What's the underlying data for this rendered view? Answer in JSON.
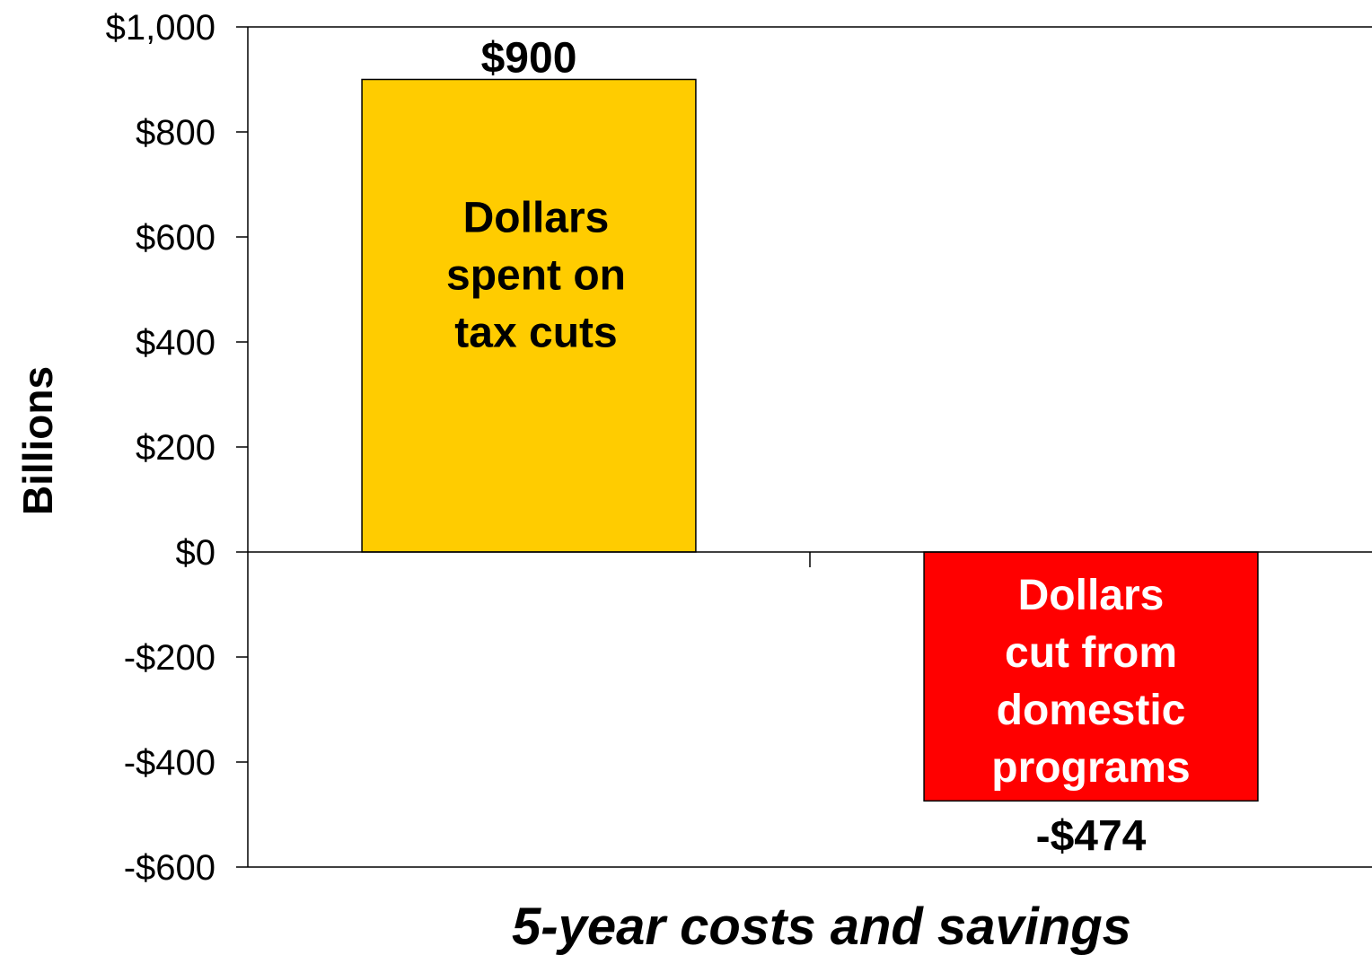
{
  "chart_data": {
    "type": "bar",
    "categories": [
      "Dollars spent on tax cuts",
      "Dollars cut from domestic programs"
    ],
    "values": [
      900,
      -474
    ],
    "value_labels": [
      "$900",
      "-$474"
    ],
    "bar_text": [
      [
        "Dollars",
        "spent on",
        "tax cuts"
      ],
      [
        "Dollars",
        "cut from",
        "domestic",
        "programs"
      ]
    ],
    "colors": [
      "#FFCC00",
      "#FF0000"
    ],
    "bar_text_colors": [
      "#000000",
      "#FFFFFF"
    ],
    "xlabel": "5-year costs and savings",
    "ylabel": "Billions",
    "ylim": [
      -600,
      1000
    ],
    "yticks": [
      1000,
      800,
      600,
      400,
      200,
      0,
      -200,
      -400,
      -600
    ],
    "ytick_labels": [
      "$1,000",
      "$800",
      "$600",
      "$400",
      "$200",
      "$0",
      "-$200",
      "-$400",
      "-$600"
    ],
    "grid": false,
    "legend": "none"
  }
}
